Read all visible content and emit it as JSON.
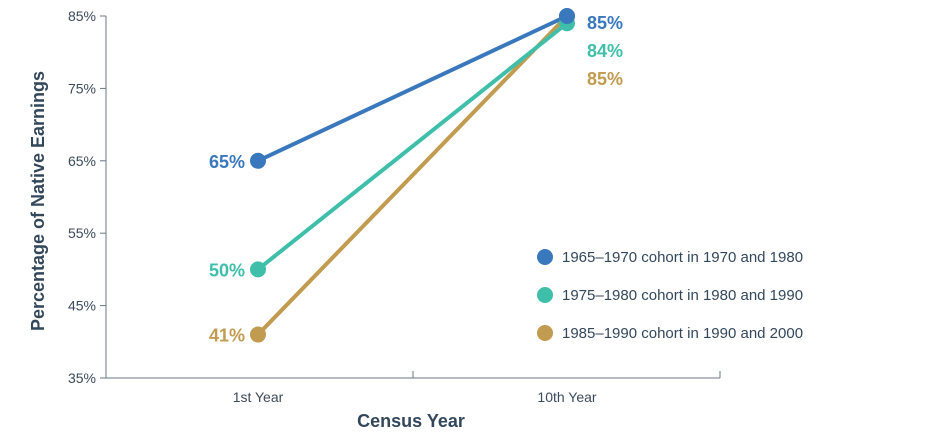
{
  "chart_data": {
    "type": "line",
    "title": "",
    "xlabel": "Census Year",
    "ylabel": "Percentage of Native Earnings",
    "categories": [
      "1st Year",
      "10th Year"
    ],
    "ylim": [
      35,
      85
    ],
    "yticks": [
      "35%",
      "45%",
      "55%",
      "65%",
      "75%",
      "85%"
    ],
    "ytick_values": [
      35,
      45,
      55,
      65,
      75,
      85
    ],
    "legend_position": "right",
    "grid": false,
    "series": [
      {
        "name": "1965–1970 cohort in 1970 and 1980",
        "values": [
          65,
          85
        ],
        "labels": [
          "65%",
          "85%"
        ],
        "color": "#3a78bd"
      },
      {
        "name": "1975–1980 cohort in 1980 and 1990",
        "values": [
          50,
          84
        ],
        "labels": [
          "50%",
          "84%"
        ],
        "color": "#3fbfa9"
      },
      {
        "name": "1985–1990 cohort in 1990 and 2000",
        "values": [
          41,
          85
        ],
        "labels": [
          "41%",
          "85%"
        ],
        "color": "#c19b50"
      }
    ]
  }
}
